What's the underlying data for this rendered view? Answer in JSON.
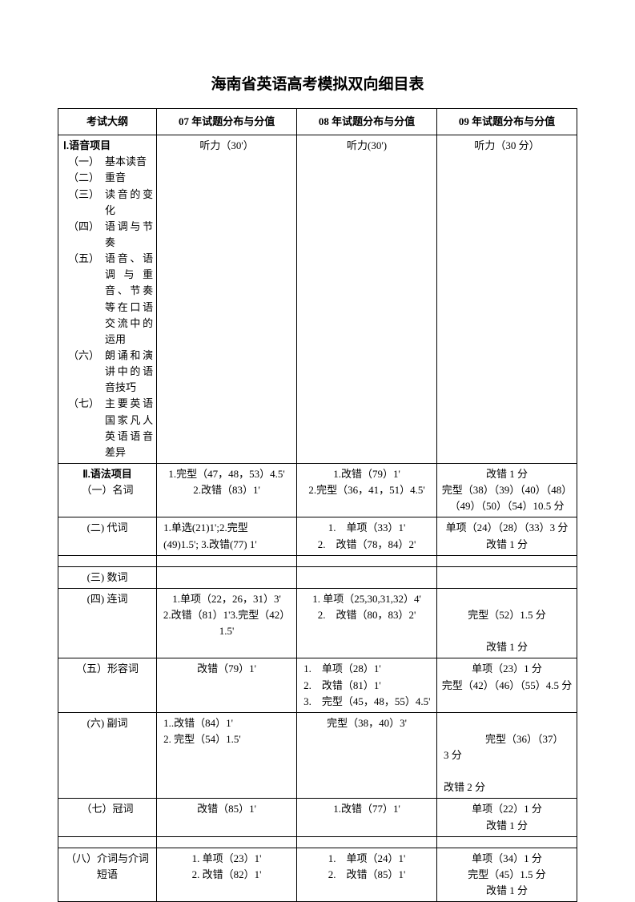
{
  "title": "海南省英语高考模拟双向细目表",
  "headers": {
    "col1": "考试大纲",
    "col2": "07 年试题分布与分值",
    "col3": "08 年试题分布与分值",
    "col4": "09 年试题分布与分值"
  },
  "section1": {
    "heading": "Ⅰ.语音项目",
    "items": [
      {
        "label": "（一）",
        "text": "基本读音"
      },
      {
        "label": "（二）",
        "text": "重音"
      },
      {
        "label": "（三）",
        "text": "读音的变化"
      },
      {
        "label": "（四）",
        "text": "语调与节奏"
      },
      {
        "label": "（五）",
        "text": "语音、语调与重音、节奏等在口语交流中的运用"
      },
      {
        "label": "（六）",
        "text": "朗诵和演讲中的语音技巧"
      },
      {
        "label": "（七）",
        "text": "主要英语国家凡人英语语音差异"
      }
    ],
    "col2": "听力（30'）",
    "col3": "听力(30')",
    "col4": "听力（30 分）"
  },
  "section2": {
    "row1": {
      "c1_heading": "Ⅱ.语法项目",
      "c1_sub": "（一）名词",
      "c2": "1.完型（47，48，53）4.5'\n2.改错（83）1'",
      "c3": "1.改错（79）1'\n2.完型（36，41，51）4.5'",
      "c4": "改错 1 分\n完型（38）（39）（40）（48）（49）（50）（54）10.5 分"
    },
    "row2": {
      "c1": "(二) 代词",
      "c2": "1.单选(21)1';2.完型(49)1.5'; 3.改错(77) 1'",
      "c3": "1.　单项（33）1'\n2.　改错（78，84）2'",
      "c4": "单项（24）（28）（33）3 分\n改错 1 分"
    },
    "row3": {
      "c1": "(三) 数词",
      "c2": "",
      "c3": "",
      "c4": ""
    },
    "row4": {
      "c1": "(四) 连词",
      "c2": "1.单项（22，26，31）3'\n2.改错（81）1'3.完型（42）1.5'",
      "c3": "1. 单项（25,30,31,32）4'\n2.　改错（80，83）2'",
      "c4": "\n完型（52）1.5 分\n\n改错 1 分"
    },
    "row5": {
      "c1": "（五）形容词",
      "c2": "改错（79）1'",
      "c3": "1.　单项（28）1'\n2.　改错（81）1'\n3.　完型（45，48，55）4.5'",
      "c4": "单项（23）1 分\n完型（42）（46）（55）4.5 分"
    },
    "row6": {
      "c1": "(六) 副词",
      "c2": "1..改错（84）1'\n2. 完型（54）1.5'",
      "c3": "完型（38，40）3'",
      "c4": "\n　　　　完型（36）（37）3 分\n\n改错 2 分"
    },
    "row7": {
      "c1": "（七）冠词",
      "c2": "改错（85）1'",
      "c3": "1.改错（77）1'",
      "c4": "单项（22）1 分\n改错 1 分"
    },
    "row8": {
      "c1": "（八）介词与介词短语",
      "c2": "1. 单项（23）1'\n2. 改错（82）1'",
      "c3": "1.　单项（24）1'\n2.　改错（85）1'",
      "c4": "单项（34）1 分\n完型（45）1.5 分\n改错 1 分"
    }
  }
}
